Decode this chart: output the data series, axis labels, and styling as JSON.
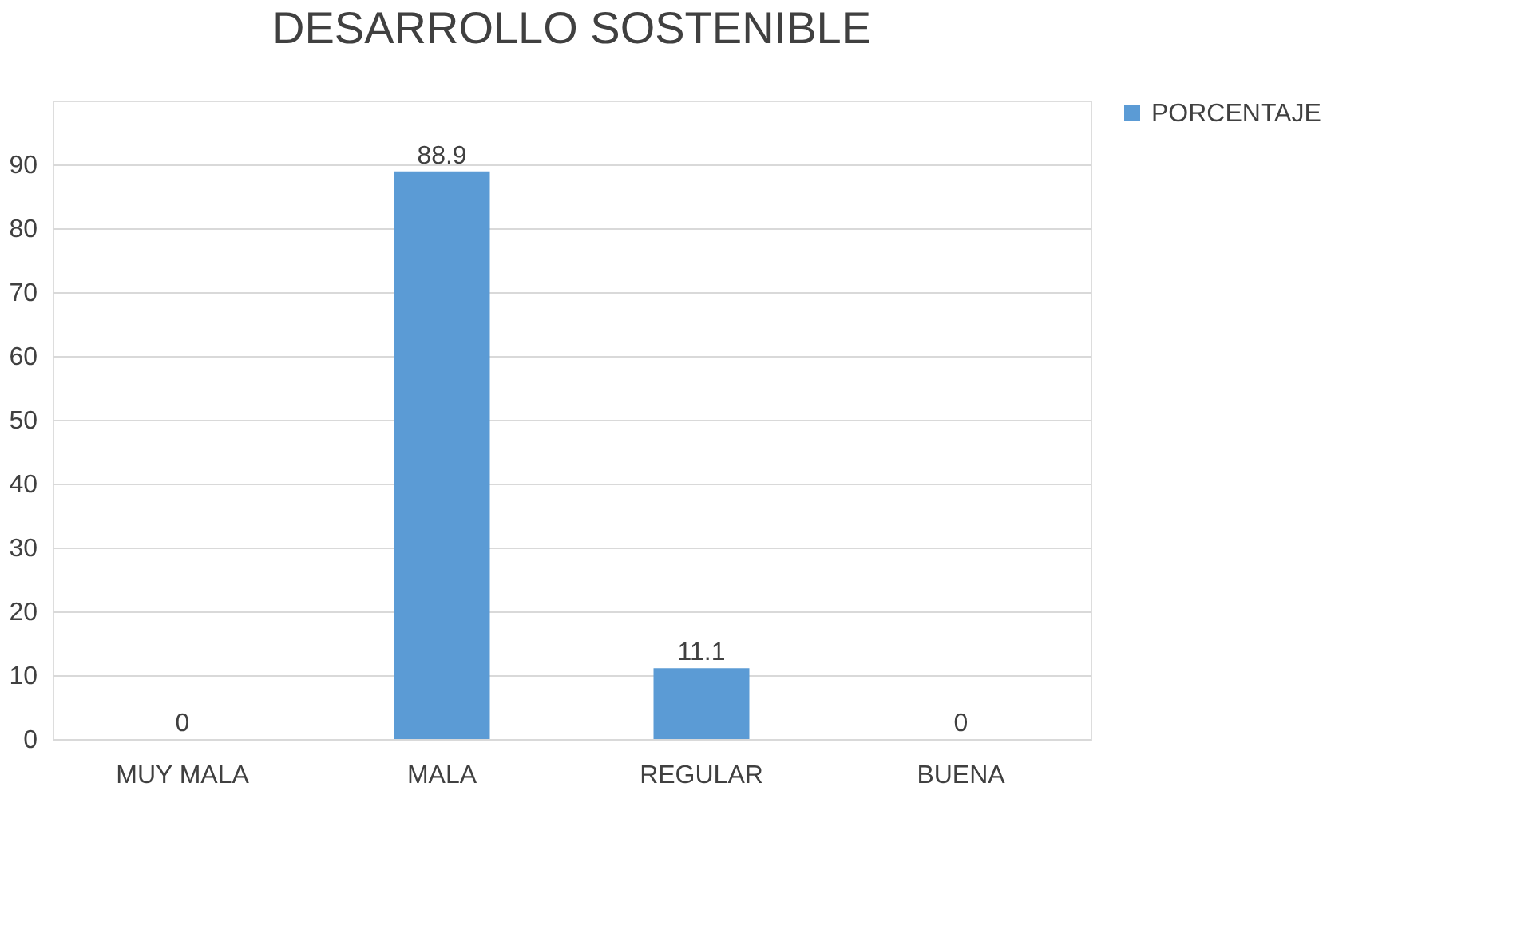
{
  "chart_data": {
    "type": "bar",
    "title": "DESARROLLO SOSTENIBLE",
    "categories": [
      "MUY MALA",
      "MALA",
      "REGULAR",
      "BUENA"
    ],
    "series": [
      {
        "name": "PORCENTAJE",
        "color": "#5b9bd5",
        "values": [
          0,
          88.9,
          11.1,
          0
        ]
      }
    ],
    "ylim": [
      0,
      100
    ],
    "yticks": [
      0,
      10,
      20,
      30,
      40,
      50,
      60,
      70,
      80,
      90
    ],
    "grid": "y",
    "legend": "right",
    "data_labels": true
  }
}
